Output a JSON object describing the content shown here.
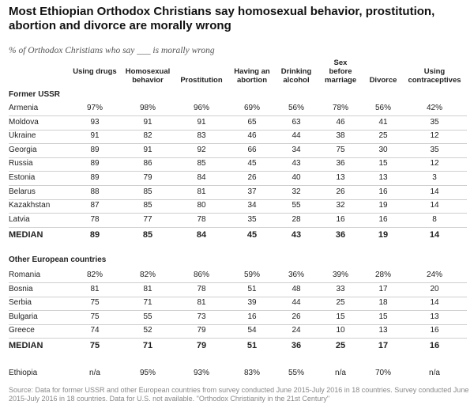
{
  "title": "Most Ethiopian Orthodox Christians say homosexual behavior, prostitution, abortion and divorce are morally wrong",
  "subtitle": "% of Orthodox Christians who say ___ is morally wrong",
  "columns": [
    "Using drugs",
    "Homosexual behavior",
    "Prostitution",
    "Having an abortion",
    "Drinking alcohol",
    "Sex before marriage",
    "Divorce",
    "Using contraceptives"
  ],
  "source": "Source: Data for former USSR and other European countries from survey conducted June 2015-July 2016 in 18 countries. Survey conducted June 2015-July 2016 in 18 countries. Data for U.S. not available. \"Orthodox Christianity in the 21st Century\"",
  "chart_data": {
    "type": "table",
    "columns": [
      "Using drugs",
      "Homosexual behavior",
      "Prostitution",
      "Having an abortion",
      "Drinking alcohol",
      "Sex before marriage",
      "Divorce",
      "Using contraceptives"
    ],
    "groups": [
      {
        "name": "Former USSR",
        "rows": [
          {
            "label": "Armenia",
            "values": [
              "97%",
              "98%",
              "96%",
              "69%",
              "56%",
              "78%",
              "56%",
              "42%"
            ]
          },
          {
            "label": "Moldova",
            "values": [
              "93",
              "91",
              "91",
              "65",
              "63",
              "46",
              "41",
              "35"
            ]
          },
          {
            "label": "Ukraine",
            "values": [
              "91",
              "82",
              "83",
              "46",
              "44",
              "38",
              "25",
              "12"
            ]
          },
          {
            "label": "Georgia",
            "values": [
              "89",
              "91",
              "92",
              "66",
              "34",
              "75",
              "30",
              "35"
            ]
          },
          {
            "label": "Russia",
            "values": [
              "89",
              "86",
              "85",
              "45",
              "43",
              "36",
              "15",
              "12"
            ]
          },
          {
            "label": "Estonia",
            "values": [
              "89",
              "79",
              "84",
              "26",
              "40",
              "13",
              "13",
              "3"
            ]
          },
          {
            "label": "Belarus",
            "values": [
              "88",
              "85",
              "81",
              "37",
              "32",
              "26",
              "16",
              "14"
            ]
          },
          {
            "label": "Kazakhstan",
            "values": [
              "87",
              "85",
              "80",
              "34",
              "55",
              "32",
              "19",
              "14"
            ]
          },
          {
            "label": "Latvia",
            "values": [
              "78",
              "77",
              "78",
              "35",
              "28",
              "16",
              "16",
              "8"
            ]
          }
        ],
        "median": {
          "label": "MEDIAN",
          "values": [
            "89",
            "85",
            "84",
            "45",
            "43",
            "36",
            "19",
            "14"
          ]
        }
      },
      {
        "name": "Other European countries",
        "rows": [
          {
            "label": "Romania",
            "values": [
              "82%",
              "82%",
              "86%",
              "59%",
              "36%",
              "39%",
              "28%",
              "24%"
            ]
          },
          {
            "label": "Bosnia",
            "values": [
              "81",
              "81",
              "78",
              "51",
              "48",
              "33",
              "17",
              "20"
            ]
          },
          {
            "label": "Serbia",
            "values": [
              "75",
              "71",
              "81",
              "39",
              "44",
              "25",
              "18",
              "14"
            ]
          },
          {
            "label": "Bulgaria",
            "values": [
              "75",
              "55",
              "73",
              "16",
              "26",
              "15",
              "15",
              "13"
            ]
          },
          {
            "label": "Greece",
            "values": [
              "74",
              "52",
              "79",
              "54",
              "24",
              "10",
              "13",
              "16"
            ]
          }
        ],
        "median": {
          "label": "MEDIAN",
          "values": [
            "75",
            "71",
            "79",
            "51",
            "36",
            "25",
            "17",
            "16"
          ]
        }
      },
      {
        "name": "",
        "rows": [
          {
            "label": "Ethiopia",
            "values": [
              "n/a",
              "95%",
              "93%",
              "83%",
              "55%",
              "n/a",
              "70%",
              "n/a"
            ]
          }
        ]
      }
    ]
  }
}
